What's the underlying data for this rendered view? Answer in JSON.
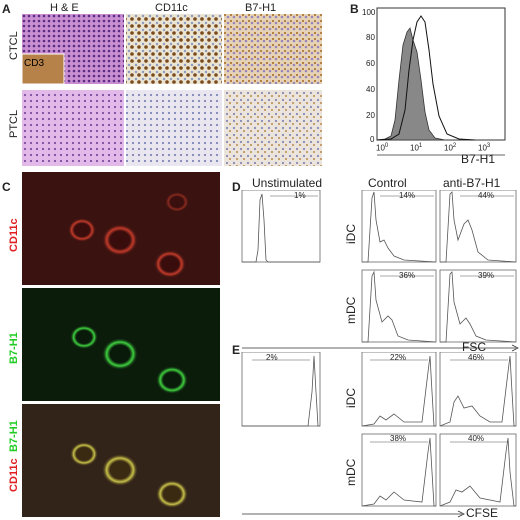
{
  "figure": {
    "panels": {
      "A": {
        "letter": "A",
        "col_headers": [
          "H & E",
          "CD11c",
          "B7-H1"
        ],
        "row_labels": [
          "CTCL",
          "PTCL"
        ],
        "inset_label": "CD3"
      },
      "B": {
        "letter": "B",
        "y_ticks": [
          "0",
          "20",
          "40",
          "60",
          "80",
          "100"
        ],
        "x_ticks": [
          "10",
          "10",
          "10",
          "10"
        ],
        "x_tick_exp": [
          "0",
          "1",
          "2",
          "3"
        ],
        "x_label": "B7-H1"
      },
      "C": {
        "letter": "C",
        "stain_1": "CD11c",
        "stain_2": "B7-H1",
        "merge_a": "CD11c",
        "merge_b": "B7-H1",
        "color_red": "#e02020",
        "color_green": "#22cc22"
      },
      "D": {
        "letter": "D",
        "headers": [
          "Unstimulated",
          "Control",
          "anti-B7-H1"
        ],
        "row_labels": [
          "iDC",
          "mDC"
        ],
        "pct_unstim": "1%",
        "pct": [
          [
            "14%",
            "44%"
          ],
          [
            "36%",
            "39%"
          ]
        ],
        "x_label": "FSC"
      },
      "E": {
        "letter": "E",
        "row_labels": [
          "iDC",
          "mDC"
        ],
        "pct_unstim": "2%",
        "pct": [
          [
            "22%",
            "46%"
          ],
          [
            "38%",
            "40%"
          ]
        ],
        "x_label": "CFSE"
      }
    }
  }
}
